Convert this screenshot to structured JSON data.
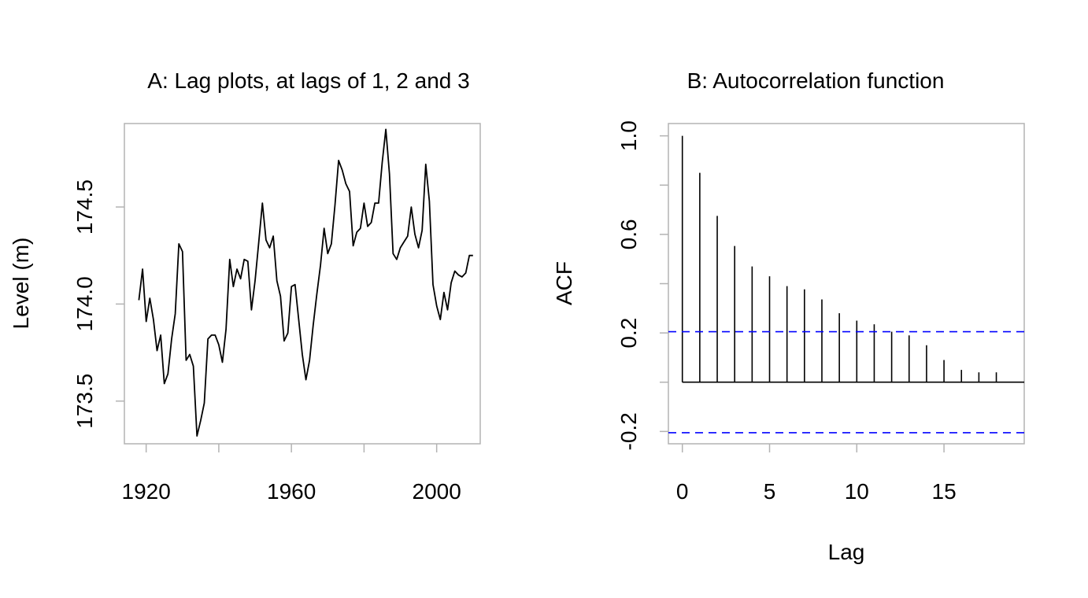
{
  "chart_data": [
    {
      "type": "line",
      "title": "A: Lag plots, at lags of 1, 2 and 3",
      "xlabel": "",
      "ylabel": "Level (m)",
      "xlim": [
        1914,
        2012
      ],
      "ylim": [
        173.28,
        174.93
      ],
      "xticks": [
        1920,
        1940,
        1960,
        1980,
        2000
      ],
      "xtick_labels": [
        "1920",
        "",
        "1960",
        "",
        "2000"
      ],
      "yticks": [
        173.5,
        174.0,
        174.5
      ],
      "ytick_labels": [
        "173.5",
        "174.0",
        "174.5"
      ],
      "grid": false,
      "series": [
        {
          "x": [
            1918,
            1919,
            1920,
            1921,
            1922,
            1923,
            1924,
            1925,
            1926,
            1927,
            1928,
            1929,
            1930,
            1931,
            1932,
            1933,
            1934,
            1935,
            1936,
            1937,
            1938,
            1939,
            1940,
            1941,
            1942,
            1943,
            1944,
            1945,
            1946,
            1947,
            1948,
            1949,
            1950,
            1951,
            1952,
            1953,
            1954,
            1955,
            1956,
            1957,
            1958,
            1959,
            1960,
            1961,
            1962,
            1963,
            1964,
            1965,
            1966,
            1967,
            1968,
            1969,
            1970,
            1971,
            1972,
            1973,
            1974,
            1975,
            1976,
            1977,
            1978,
            1979,
            1980,
            1981,
            1982,
            1983,
            1984,
            1985,
            1986,
            1987,
            1988,
            1989,
            1990,
            1991,
            1992,
            1993,
            1994,
            1995,
            1996,
            1997,
            1998,
            1999,
            2000,
            2001,
            2002,
            2003,
            2004,
            2005,
            2006,
            2007,
            2008,
            2009,
            2010
          ],
          "y": [
            174.02,
            174.18,
            173.91,
            174.03,
            173.92,
            173.76,
            173.84,
            173.59,
            173.64,
            173.82,
            173.95,
            174.31,
            174.27,
            173.71,
            173.74,
            173.68,
            173.32,
            173.4,
            173.49,
            173.82,
            173.84,
            173.84,
            173.79,
            173.7,
            173.87,
            174.23,
            174.09,
            174.18,
            174.13,
            174.23,
            174.22,
            173.97,
            174.12,
            174.32,
            174.52,
            174.33,
            174.29,
            174.35,
            174.12,
            174.04,
            173.81,
            173.85,
            174.09,
            174.1,
            173.92,
            173.74,
            173.61,
            173.71,
            173.89,
            174.05,
            174.2,
            174.39,
            174.26,
            174.31,
            174.51,
            174.74,
            174.69,
            174.62,
            174.58,
            174.3,
            174.37,
            174.39,
            174.52,
            174.4,
            174.42,
            174.52,
            174.52,
            174.73,
            174.9,
            174.67,
            174.26,
            174.23,
            174.29,
            174.32,
            174.35,
            174.5,
            174.36,
            174.29,
            174.38,
            174.72,
            174.53,
            174.1,
            173.99,
            173.92,
            174.06,
            173.97,
            174.11,
            174.17,
            174.15,
            174.14,
            174.16,
            174.25,
            174.25
          ]
        }
      ]
    },
    {
      "type": "bar",
      "title": "B: Autocorrelation function",
      "xlabel": "Lag",
      "ylabel": "ACF",
      "xlim": [
        -0.8,
        19.6
      ],
      "ylim": [
        -0.25,
        1.05
      ],
      "xticks": [
        0,
        5,
        10,
        15
      ],
      "xtick_labels": [
        "0",
        "5",
        "10",
        "15"
      ],
      "yticks": [
        -0.2,
        0.0,
        0.2,
        0.4,
        0.6,
        0.8,
        1.0
      ],
      "ytick_labels": [
        "-0.2",
        "",
        "0.2",
        "",
        "0.6",
        "",
        "1.0"
      ],
      "grid": false,
      "lags": [
        0,
        1,
        2,
        3,
        4,
        5,
        6,
        7,
        8,
        9,
        10,
        11,
        12,
        13,
        14,
        15,
        16,
        17,
        18,
        19
      ],
      "values": [
        1.0,
        0.85,
        0.675,
        0.553,
        0.47,
        0.43,
        0.39,
        0.377,
        0.336,
        0.28,
        0.25,
        0.235,
        0.205,
        0.19,
        0.15,
        0.09,
        0.05,
        0.04,
        0.04,
        0.0
      ],
      "confidence_bounds": [
        0.205,
        -0.205
      ],
      "colors": {
        "bars": "#000000",
        "confidence": "#0000ff"
      }
    }
  ]
}
